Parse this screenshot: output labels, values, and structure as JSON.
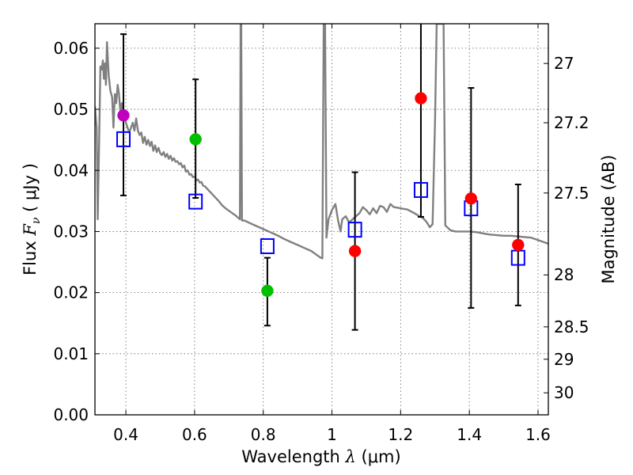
{
  "chart_data": {
    "type": "scatter",
    "xlabel": {
      "prefix": "Wavelength  ",
      "symbol": "λ",
      "unit": " (μm)"
    },
    "ylabel": {
      "prefix": "Flux  ",
      "symbol": "F",
      "subscript": "ν",
      "unit": "  ( μJy )"
    },
    "y2label": "Magnitude (AB)",
    "xlim": [
      0.31,
      1.63
    ],
    "ylim": [
      0.0,
      0.064
    ],
    "grid": true,
    "x_ticks": [
      {
        "value": 0.4,
        "label": "0.4"
      },
      {
        "value": 0.6,
        "label": "0.6"
      },
      {
        "value": 0.8,
        "label": "0.8"
      },
      {
        "value": 1.0,
        "label": "1"
      },
      {
        "value": 1.2,
        "label": "1.2"
      },
      {
        "value": 1.4,
        "label": "1.4"
      },
      {
        "value": 1.6,
        "label": "1.6"
      }
    ],
    "y_ticks": [
      {
        "value": 0.0,
        "label": "0.00"
      },
      {
        "value": 0.01,
        "label": "0.01"
      },
      {
        "value": 0.02,
        "label": "0.02"
      },
      {
        "value": 0.03,
        "label": "0.03"
      },
      {
        "value": 0.04,
        "label": "0.04"
      },
      {
        "value": 0.05,
        "label": "0.05"
      },
      {
        "value": 0.06,
        "label": "0.06"
      }
    ],
    "right_ticks": [
      {
        "label": "27",
        "flux": 0.0575
      },
      {
        "label": "27.2",
        "flux": 0.0478
      },
      {
        "label": "27.5",
        "flux": 0.0363
      },
      {
        "label": "28",
        "flux": 0.0229
      },
      {
        "label": "28.5",
        "flux": 0.0144
      },
      {
        "label": "29",
        "flux": 0.0091
      },
      {
        "label": "30",
        "flux": 0.0036
      }
    ],
    "model_spectrum": {
      "color": "#808080",
      "points": [
        [
          0.31,
          0.0505
        ],
        [
          0.315,
          0.047
        ],
        [
          0.318,
          0.032
        ],
        [
          0.322,
          0.044
        ],
        [
          0.326,
          0.057
        ],
        [
          0.33,
          0.0565
        ],
        [
          0.333,
          0.058
        ],
        [
          0.336,
          0.055
        ],
        [
          0.339,
          0.0575
        ],
        [
          0.342,
          0.054
        ],
        [
          0.345,
          0.061
        ],
        [
          0.35,
          0.0555
        ],
        [
          0.355,
          0.053
        ],
        [
          0.36,
          0.052
        ],
        [
          0.364,
          0.047
        ],
        [
          0.368,
          0.0525
        ],
        [
          0.372,
          0.051
        ],
        [
          0.376,
          0.054
        ],
        [
          0.38,
          0.0525
        ],
        [
          0.384,
          0.0495
        ],
        [
          0.388,
          0.051
        ],
        [
          0.392,
          0.049
        ],
        [
          0.396,
          0.0495
        ],
        [
          0.4,
          0.0478
        ],
        [
          0.405,
          0.047
        ],
        [
          0.41,
          0.0462
        ],
        [
          0.415,
          0.047
        ],
        [
          0.42,
          0.0478
        ],
        [
          0.425,
          0.0465
        ],
        [
          0.43,
          0.0485
        ],
        [
          0.435,
          0.0465
        ],
        [
          0.44,
          0.0458
        ],
        [
          0.445,
          0.0462
        ],
        [
          0.45,
          0.0445
        ],
        [
          0.455,
          0.0455
        ],
        [
          0.46,
          0.0442
        ],
        [
          0.465,
          0.045
        ],
        [
          0.47,
          0.044
        ],
        [
          0.475,
          0.0447
        ],
        [
          0.48,
          0.0432
        ],
        [
          0.485,
          0.0441
        ],
        [
          0.49,
          0.043
        ],
        [
          0.495,
          0.0437
        ],
        [
          0.5,
          0.0428
        ],
        [
          0.505,
          0.0425
        ],
        [
          0.51,
          0.043
        ],
        [
          0.515,
          0.0422
        ],
        [
          0.52,
          0.0427
        ],
        [
          0.525,
          0.0419
        ],
        [
          0.53,
          0.0424
        ],
        [
          0.535,
          0.0416
        ],
        [
          0.54,
          0.042
        ],
        [
          0.545,
          0.0414
        ],
        [
          0.55,
          0.0415
        ],
        [
          0.555,
          0.041
        ],
        [
          0.56,
          0.0412
        ],
        [
          0.565,
          0.0405
        ],
        [
          0.57,
          0.0408
        ],
        [
          0.575,
          0.0398
        ],
        [
          0.58,
          0.04
        ],
        [
          0.585,
          0.0393
        ],
        [
          0.59,
          0.0394
        ],
        [
          0.595,
          0.0389
        ],
        [
          0.6,
          0.039
        ],
        [
          0.605,
          0.0384
        ],
        [
          0.61,
          0.0385
        ],
        [
          0.615,
          0.038
        ],
        [
          0.62,
          0.0381
        ],
        [
          0.625,
          0.0375
        ],
        [
          0.63,
          0.0374
        ],
        [
          0.64,
          0.0368
        ],
        [
          0.65,
          0.0362
        ],
        [
          0.66,
          0.0356
        ],
        [
          0.67,
          0.035
        ],
        [
          0.68,
          0.0343
        ],
        [
          0.69,
          0.0338
        ],
        [
          0.7,
          0.0334
        ],
        [
          0.71,
          0.033
        ],
        [
          0.72,
          0.0326
        ],
        [
          0.728,
          0.0322
        ],
        [
          0.732,
          0.032
        ],
        [
          0.734,
          0.064
        ],
        [
          0.736,
          0.064
        ],
        [
          0.738,
          0.0318
        ],
        [
          0.745,
          0.0318
        ],
        [
          0.76,
          0.0314
        ],
        [
          0.78,
          0.0309
        ],
        [
          0.8,
          0.0304
        ],
        [
          0.82,
          0.0299
        ],
        [
          0.84,
          0.0294
        ],
        [
          0.86,
          0.0288
        ],
        [
          0.88,
          0.0283
        ],
        [
          0.9,
          0.0278
        ],
        [
          0.92,
          0.0273
        ],
        [
          0.94,
          0.0268
        ],
        [
          0.955,
          0.0262
        ],
        [
          0.965,
          0.0258
        ],
        [
          0.972,
          0.0256
        ],
        [
          0.976,
          0.064
        ],
        [
          0.98,
          0.064
        ],
        [
          0.984,
          0.029
        ],
        [
          0.99,
          0.032
        ],
        [
          1.0,
          0.0335
        ],
        [
          1.01,
          0.0345
        ],
        [
          1.018,
          0.0318
        ],
        [
          1.025,
          0.03
        ],
        [
          1.03,
          0.032
        ],
        [
          1.04,
          0.0325
        ],
        [
          1.05,
          0.0315
        ],
        [
          1.06,
          0.032
        ],
        [
          1.08,
          0.033
        ],
        [
          1.09,
          0.034
        ],
        [
          1.1,
          0.0335
        ],
        [
          1.11,
          0.0328
        ],
        [
          1.12,
          0.0338
        ],
        [
          1.13,
          0.033
        ],
        [
          1.14,
          0.0342
        ],
        [
          1.15,
          0.034
        ],
        [
          1.16,
          0.0332
        ],
        [
          1.17,
          0.0345
        ],
        [
          1.18,
          0.034
        ],
        [
          1.2,
          0.0338
        ],
        [
          1.22,
          0.0336
        ],
        [
          1.24,
          0.033
        ],
        [
          1.255,
          0.0325
        ],
        [
          1.265,
          0.0322
        ],
        [
          1.275,
          0.0316
        ],
        [
          1.285,
          0.0307
        ],
        [
          1.293,
          0.0312
        ],
        [
          1.3,
          0.048
        ],
        [
          1.305,
          0.064
        ],
        [
          1.325,
          0.064
        ],
        [
          1.33,
          0.031
        ],
        [
          1.345,
          0.0302
        ],
        [
          1.36,
          0.03
        ],
        [
          1.38,
          0.03
        ],
        [
          1.4,
          0.03
        ],
        [
          1.42,
          0.0299
        ],
        [
          1.44,
          0.0297
        ],
        [
          1.46,
          0.0295
        ],
        [
          1.48,
          0.0294
        ],
        [
          1.5,
          0.0293
        ],
        [
          1.52,
          0.0293
        ],
        [
          1.54,
          0.0292
        ],
        [
          1.56,
          0.0291
        ],
        [
          1.58,
          0.029
        ],
        [
          1.6,
          0.0286
        ],
        [
          1.63,
          0.028
        ]
      ]
    },
    "model_photometry": {
      "marker": "open-square",
      "color": "#0000ff",
      "points": [
        {
          "x": 0.393,
          "y": 0.0451
        },
        {
          "x": 0.603,
          "y": 0.0349
        },
        {
          "x": 0.812,
          "y": 0.0276
        },
        {
          "x": 1.067,
          "y": 0.0303
        },
        {
          "x": 1.259,
          "y": 0.0368
        },
        {
          "x": 1.405,
          "y": 0.0338
        },
        {
          "x": 1.542,
          "y": 0.0257
        }
      ]
    },
    "observed": {
      "marker": "filled-circle",
      "points": [
        {
          "x": 0.393,
          "y": 0.049,
          "err_lo": 0.0359,
          "err_hi": 0.0623,
          "color": "#bf00bf"
        },
        {
          "x": 0.603,
          "y": 0.0451,
          "err_lo": 0.0355,
          "err_hi": 0.0549,
          "color": "#00bf00"
        },
        {
          "x": 0.812,
          "y": 0.0203,
          "err_lo": 0.0146,
          "err_hi": 0.0257,
          "color": "#00bf00"
        },
        {
          "x": 1.067,
          "y": 0.0268,
          "err_lo": 0.0139,
          "err_hi": 0.0397,
          "color": "#ff0000"
        },
        {
          "x": 1.259,
          "y": 0.0518,
          "err_lo": 0.0324,
          "err_hi": 0.064,
          "color": "#ff0000"
        },
        {
          "x": 1.405,
          "y": 0.0354,
          "err_lo": 0.0175,
          "err_hi": 0.0535,
          "color": "#ff0000"
        },
        {
          "x": 1.542,
          "y": 0.0278,
          "err_lo": 0.0179,
          "err_hi": 0.0377,
          "color": "#ff0000"
        }
      ]
    }
  }
}
